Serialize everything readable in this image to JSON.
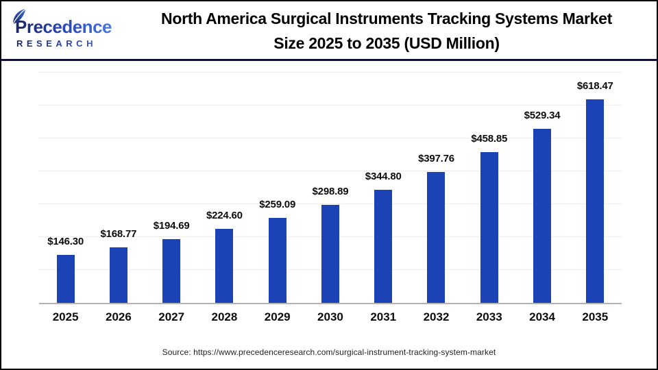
{
  "header": {
    "logo": {
      "name": "Precedence",
      "subtitle": "RESEARCH"
    },
    "title_line1": "North America Surgical Instruments Tracking Systems Market",
    "title_line2": "Size 2025 to 2035 (USD Million)"
  },
  "chart_data": {
    "type": "bar",
    "title": "North America Surgical Instruments Tracking Systems Market Size 2025 to 2035 (USD Million)",
    "unit": "USD Million",
    "categories": [
      "2025",
      "2026",
      "2027",
      "2028",
      "2029",
      "2030",
      "2031",
      "2032",
      "2033",
      "2034",
      "2035"
    ],
    "values": [
      146.3,
      168.77,
      194.69,
      224.6,
      259.09,
      298.89,
      344.8,
      397.76,
      458.85,
      529.34,
      618.47
    ],
    "value_labels": [
      "$146.30",
      "$168.77",
      "$194.69",
      "$224.60",
      "$259.09",
      "$298.89",
      "$344.80",
      "$397.76",
      "$458.85",
      "$529.34",
      "$618.47"
    ],
    "xlabel": "",
    "ylabel": "",
    "ylim": [
      0,
      700
    ],
    "gridline_step": 100,
    "grid": "horizontal-only",
    "legend": "none",
    "y_axis_tick_labels_visible": false
  },
  "footer": {
    "source": "Source: https://www.precedenceresearch.com/surgical-instrument-tracking-system-market"
  },
  "colors": {
    "bar": "#1B43B5",
    "header_rule": "#0F1238",
    "logo_navy": "#1A2560",
    "logo_blue": "#4679DD",
    "gridline": "#EDEDED",
    "baseline": "#B3B3B3",
    "source_text": "#1F1F1F"
  }
}
